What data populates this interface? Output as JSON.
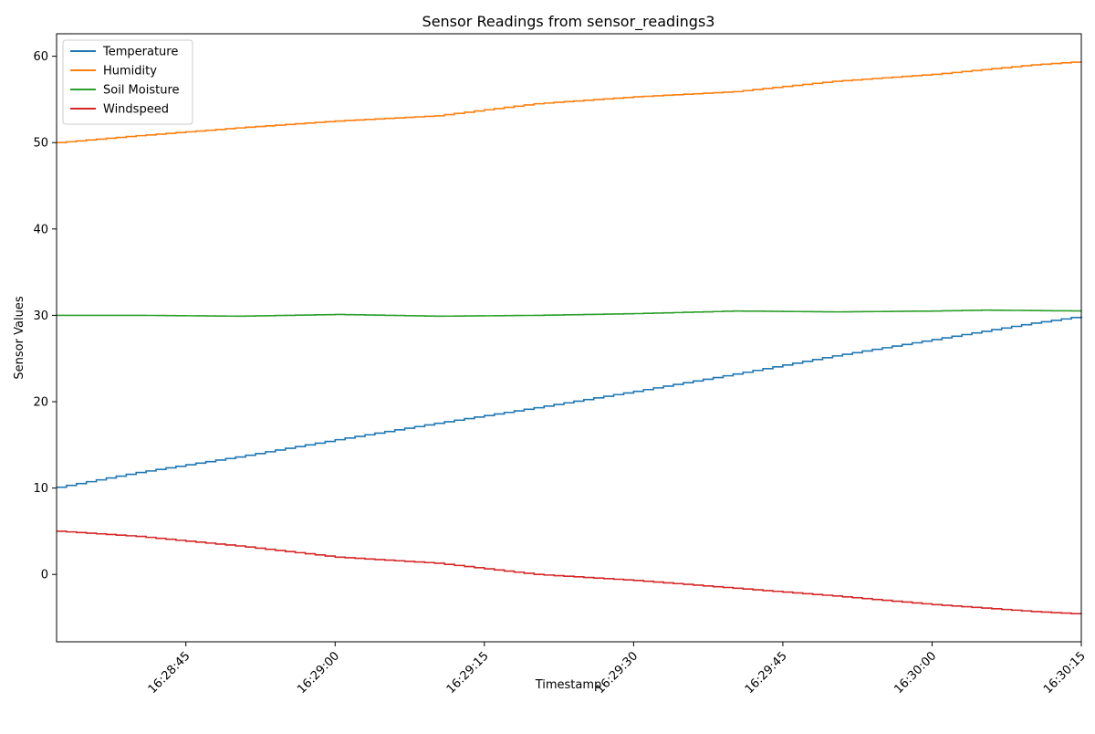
{
  "chart_data": {
    "type": "line",
    "title": "Sensor Readings from sensor_readings3",
    "xlabel": "Timestamp",
    "ylabel": "Sensor Values",
    "x_range": [
      "16:28:32",
      "16:30:15"
    ],
    "ylim": [
      -7.8,
      62.6
    ],
    "x_ticks": [
      "16:28:45",
      "16:29:00",
      "16:29:15",
      "16:29:30",
      "16:29:45",
      "16:30:00",
      "16:30:15"
    ],
    "y_ticks": [
      0,
      10,
      20,
      30,
      40,
      50,
      60
    ],
    "grid": false,
    "legend_position": "top-left",
    "step": true,
    "series": [
      {
        "name": "Temperature",
        "color": "#1f77b4",
        "x": [
          "16:28:32",
          "16:28:40",
          "16:28:50",
          "16:29:00",
          "16:29:10",
          "16:29:20",
          "16:29:30",
          "16:29:40",
          "16:29:50",
          "16:30:00",
          "16:30:10",
          "16:30:15"
        ],
        "values": [
          10.1,
          11.8,
          13.6,
          15.6,
          17.5,
          19.3,
          21.2,
          23.2,
          25.3,
          27.2,
          29.1,
          29.9
        ]
      },
      {
        "name": "Humidity",
        "color": "#ff7f0e",
        "x": [
          "16:28:32",
          "16:28:40",
          "16:28:50",
          "16:29:00",
          "16:29:10",
          "16:29:20",
          "16:29:30",
          "16:29:40",
          "16:29:50",
          "16:30:00",
          "16:30:10",
          "16:30:15"
        ],
        "values": [
          50.0,
          50.8,
          51.7,
          52.5,
          53.1,
          54.5,
          55.3,
          55.9,
          57.1,
          57.9,
          59.0,
          59.4
        ]
      },
      {
        "name": "Soil Moisture",
        "color": "#2ca02c",
        "x": [
          "16:28:32",
          "16:28:40",
          "16:28:50",
          "16:29:00",
          "16:29:10",
          "16:29:20",
          "16:29:30",
          "16:29:40",
          "16:29:50",
          "16:30:00",
          "16:30:05",
          "16:30:15"
        ],
        "values": [
          30.0,
          30.0,
          29.9,
          30.1,
          29.9,
          30.0,
          30.2,
          30.5,
          30.4,
          30.5,
          30.6,
          30.5
        ]
      },
      {
        "name": "Windspeed",
        "color": "#d62728",
        "x": [
          "16:28:32",
          "16:28:40",
          "16:28:50",
          "16:29:00",
          "16:29:10",
          "16:29:20",
          "16:29:30",
          "16:29:40",
          "16:29:50",
          "16:30:00",
          "16:30:10",
          "16:30:15"
        ],
        "values": [
          5.0,
          4.4,
          3.3,
          2.0,
          1.3,
          0.0,
          -0.7,
          -1.6,
          -2.5,
          -3.5,
          -4.3,
          -4.6
        ]
      }
    ]
  }
}
